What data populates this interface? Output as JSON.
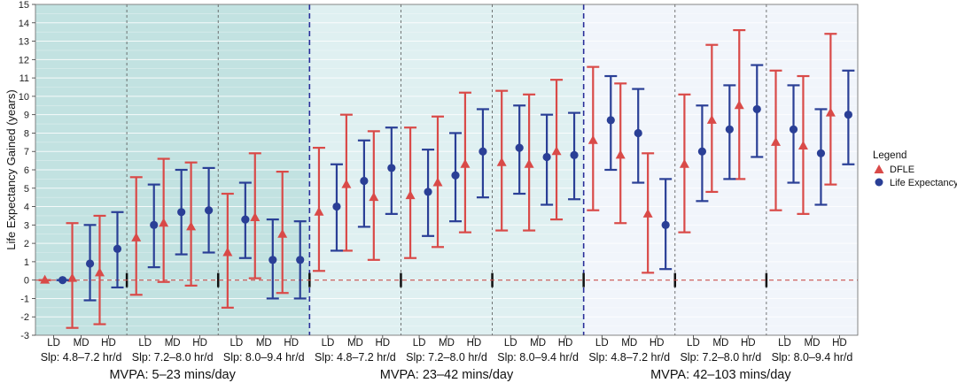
{
  "chart_data": {
    "type": "errorbar",
    "ylabel": "Life Expectancy Gained (years)",
    "ylim": [
      -3,
      15
    ],
    "yticks": [
      -3,
      -2,
      -1,
      0,
      1,
      2,
      3,
      4,
      5,
      6,
      7,
      8,
      9,
      10,
      11,
      12,
      13,
      14,
      15
    ],
    "grid": true,
    "legend": {
      "title": "Legend",
      "placement": "right",
      "entries": [
        {
          "name": "DFLE",
          "color": "#d94a48",
          "marker": "triangle"
        },
        {
          "name": "Life Expectancy",
          "color": "#2a3f96",
          "marker": "circle"
        }
      ]
    },
    "mvpa_groups": [
      {
        "label": "MVPA: 5–23 mins/day",
        "background": "#c2e2e1"
      },
      {
        "label": "MVPA: 23–42 mins/day",
        "background": "#dff0f1"
      },
      {
        "label": "MVPA: 42–103 mins/day",
        "background": "#f1f5fb"
      }
    ],
    "sleep_labels": [
      "Slp: 4.8–7.2 hr/d",
      "Slp: 7.2–8.0 hr/d",
      "Slp: 8.0–9.4 hr/d"
    ],
    "categories": [
      "LD",
      "MD",
      "HD",
      "LD",
      "MD",
      "HD",
      "LD",
      "MD",
      "HD",
      "LD",
      "MD",
      "HD",
      "LD",
      "MD",
      "HD",
      "LD",
      "MD",
      "HD",
      "LD",
      "MD",
      "HD",
      "LD",
      "MD",
      "HD",
      "LD",
      "MD",
      "HD"
    ],
    "series": [
      {
        "name": "DFLE",
        "color": "#d94a48",
        "values": [
          0.0,
          0.1,
          0.4,
          2.3,
          3.1,
          2.9,
          1.5,
          3.4,
          2.5,
          3.7,
          5.2,
          4.5,
          4.6,
          5.3,
          6.3,
          6.4,
          6.3,
          7.0,
          7.6,
          6.8,
          3.6,
          6.3,
          8.7,
          9.5,
          7.5,
          7.3,
          9.1
        ],
        "lower": [
          0.0,
          -2.6,
          -2.4,
          -0.8,
          -0.1,
          -0.3,
          -1.5,
          0.1,
          -0.7,
          0.5,
          1.6,
          1.1,
          1.2,
          1.8,
          2.6,
          2.7,
          2.7,
          3.3,
          3.8,
          3.1,
          0.4,
          2.6,
          4.8,
          5.5,
          3.8,
          3.6,
          5.2
        ],
        "upper": [
          0.0,
          3.1,
          3.5,
          5.6,
          6.6,
          6.4,
          4.7,
          6.9,
          5.9,
          7.2,
          9.0,
          8.1,
          8.3,
          8.9,
          10.2,
          10.3,
          10.1,
          10.9,
          11.6,
          10.7,
          6.9,
          10.1,
          12.8,
          13.6,
          11.4,
          11.1,
          13.4
        ]
      },
      {
        "name": "Life Expectancy",
        "color": "#2a3f96",
        "values": [
          0.0,
          0.9,
          1.7,
          3.0,
          3.7,
          3.8,
          3.3,
          1.1,
          1.1,
          4.0,
          5.4,
          6.1,
          4.8,
          5.7,
          7.0,
          7.2,
          6.7,
          6.8,
          8.7,
          8.0,
          3.0,
          7.0,
          8.2,
          9.3,
          8.2,
          6.9,
          9.0
        ],
        "lower": [
          0.0,
          -1.1,
          -0.4,
          0.7,
          1.4,
          1.5,
          1.2,
          -1.0,
          -1.0,
          1.6,
          2.9,
          3.6,
          2.4,
          3.2,
          4.5,
          4.7,
          4.1,
          4.4,
          6.0,
          5.3,
          0.6,
          4.3,
          5.5,
          6.7,
          5.3,
          4.1,
          6.3
        ],
        "upper": [
          0.0,
          3.0,
          3.7,
          5.2,
          6.0,
          6.1,
          5.3,
          3.3,
          3.2,
          6.3,
          7.6,
          8.3,
          7.1,
          8.0,
          9.3,
          9.5,
          9.0,
          9.1,
          11.1,
          10.4,
          5.5,
          9.5,
          10.6,
          11.7,
          10.6,
          9.3,
          11.4
        ]
      }
    ],
    "reference_line": {
      "y": 0,
      "color": "#c8504e",
      "style": "dashed"
    }
  }
}
